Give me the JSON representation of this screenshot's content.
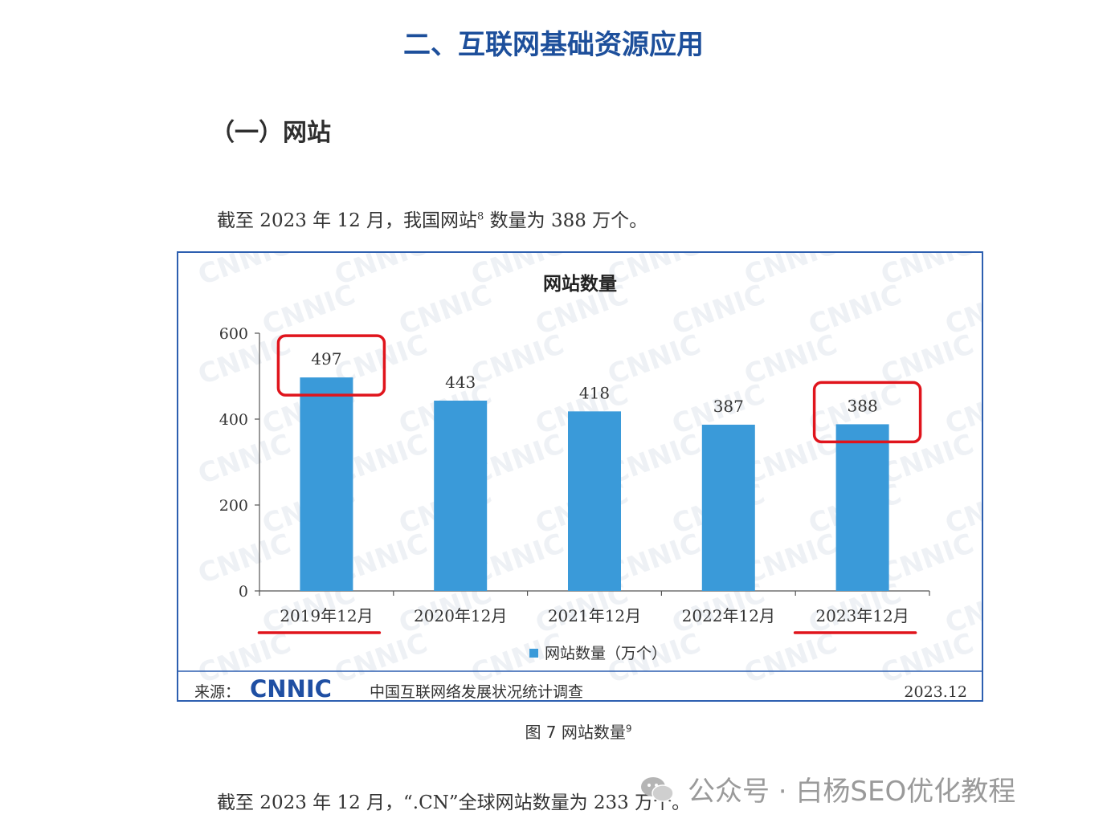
{
  "section_title": "二、互联网基础资源应用",
  "subsection_title": "（一）网站",
  "para1": {
    "text": "截至 2023 年 12 月，我国网站",
    "sup": "8",
    "text_after": " 数量为 388 万个。"
  },
  "para2": {
    "text": "截至 2023 年 12 月，“.CN”全球网站数量为 233 万个。"
  },
  "figure": {
    "source_label": "来源：",
    "source_logo": "CNNIC",
    "source_name": "中国互联网络发展状况统计调查",
    "source_date": "2023.12"
  },
  "caption": {
    "text": "图 7  网站数量",
    "sup": "9"
  },
  "watermark": {
    "icon": "wechat-icon",
    "text": "公众号 · 白杨SEO优化教程"
  },
  "colors": {
    "bar": "#3a9ad9",
    "axis": "#555555",
    "highlight": "#e0141c",
    "border": "#2d5fb0",
    "logo": "#1f4fa3"
  },
  "chart_data": {
    "type": "bar",
    "title": "网站数量",
    "categories": [
      "2019年12月",
      "2020年12月",
      "2021年12月",
      "2022年12月",
      "2023年12月"
    ],
    "series": [
      {
        "name": "网站数量（万个）",
        "values": [
          497,
          443,
          418,
          387,
          388
        ]
      }
    ],
    "ylim": [
      0,
      600
    ],
    "yticks": [
      0,
      200,
      400,
      600
    ],
    "grid": false,
    "legend": "bottom",
    "highlighted_categories": [
      "2019年12月",
      "2023年12月"
    ]
  }
}
